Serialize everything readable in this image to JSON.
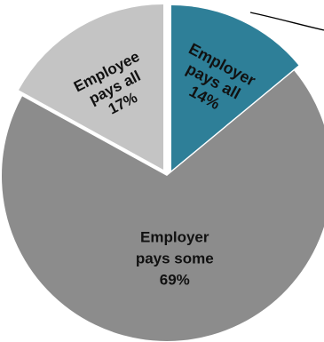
{
  "chart_data": {
    "type": "pie",
    "title": "",
    "exploded": true,
    "slices": [
      {
        "label": "Employer pays all",
        "label_lines": [
          "Employer",
          "pays all",
          "14%"
        ],
        "value": 14,
        "value_label": "14%",
        "color": "#2e7f98",
        "label_color": "#111111"
      },
      {
        "label": "Employer pays some",
        "label_lines": [
          "Employer",
          "pays some",
          "69%"
        ],
        "value": 69,
        "value_label": "69%",
        "color": "#8c8c8c",
        "label_color": "#111111"
      },
      {
        "label": "Employee pays all",
        "label_lines": [
          "Employee",
          "pays all",
          "17%"
        ],
        "value": 17,
        "value_label": "17%",
        "color": "#c4c4c4",
        "label_color": "#111111"
      }
    ]
  }
}
